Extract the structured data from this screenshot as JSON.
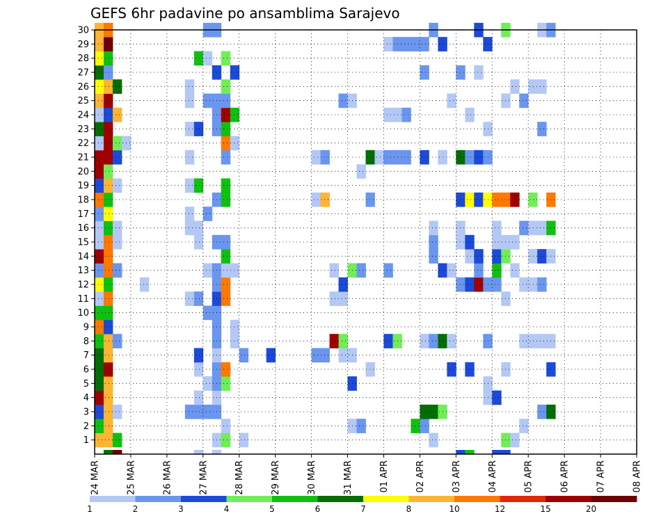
{
  "chart_data": {
    "type": "heatmap",
    "title": "GEFS 6hr padavine po ansamblima Sarajevo",
    "xlabel": "",
    "ylabel": "",
    "x_ticks": [
      "24 MAR",
      "25 MAR",
      "26 MAR",
      "27 MAR",
      "28 MAR",
      "29 MAR",
      "30 MAR",
      "31 MAR",
      "01 APR",
      "02 APR",
      "03 APR",
      "04 APR",
      "05 APR",
      "06 APR",
      "07 APR",
      "08 APR"
    ],
    "y_ticks": [
      "1",
      "2",
      "3",
      "4",
      "5",
      "6",
      "7",
      "8",
      "9",
      "10",
      "11",
      "12",
      "13",
      "14",
      "15",
      "16",
      "17",
      "18",
      "19",
      "20",
      "21",
      "22",
      "23",
      "24",
      "25",
      "26",
      "27",
      "28",
      "29",
      "30"
    ],
    "xlim": [
      "24 MAR 00Z",
      "08 APR 00Z"
    ],
    "ylim": [
      0,
      30
    ],
    "grid": true,
    "colorbar": {
      "labels": [
        "1",
        "2",
        "3",
        "4",
        "5",
        "6",
        "7",
        "8",
        "10",
        "12",
        "15",
        "20"
      ],
      "colors": [
        "#b4c8f5",
        "#6a96ef",
        "#1c4ad8",
        "#70ee58",
        "#10c010",
        "#046e04",
        "#ffff00",
        "#ffb432",
        "#ff7800",
        "#e12800",
        "#a00000",
        "#6e0000"
      ]
    },
    "cells": [
      [
        0,
        1,
        8
      ],
      [
        0,
        2,
        5
      ],
      [
        0,
        3,
        3
      ],
      [
        0,
        4,
        11
      ],
      [
        0,
        5,
        6
      ],
      [
        0,
        6,
        6
      ],
      [
        0,
        7,
        6
      ],
      [
        0,
        8,
        5
      ],
      [
        0,
        9,
        9
      ],
      [
        0,
        10,
        5
      ],
      [
        0,
        11,
        1
      ],
      [
        0,
        12,
        7
      ],
      [
        0,
        13,
        2
      ],
      [
        0,
        14,
        11
      ],
      [
        0,
        15,
        1
      ],
      [
        0,
        16,
        1
      ],
      [
        0,
        17,
        2
      ],
      [
        0,
        18,
        9
      ],
      [
        0,
        19,
        3
      ],
      [
        0,
        20,
        11
      ],
      [
        0,
        21,
        11
      ],
      [
        0,
        22,
        1
      ],
      [
        0,
        23,
        6
      ],
      [
        0,
        24,
        1
      ],
      [
        0,
        25,
        8
      ],
      [
        0,
        26,
        7
      ],
      [
        0,
        27,
        6
      ],
      [
        0,
        28,
        7
      ],
      [
        0,
        29,
        8
      ],
      [
        0,
        30,
        8
      ],
      [
        1,
        0,
        6
      ],
      [
        1,
        1,
        8
      ],
      [
        1,
        2,
        8
      ],
      [
        1,
        3,
        8
      ],
      [
        1,
        4,
        8
      ],
      [
        1,
        5,
        8
      ],
      [
        1,
        6,
        11
      ],
      [
        1,
        7,
        8
      ],
      [
        1,
        8,
        8
      ],
      [
        1,
        9,
        3
      ],
      [
        1,
        10,
        5
      ],
      [
        1,
        11,
        9
      ],
      [
        1,
        12,
        5
      ],
      [
        1,
        13,
        9
      ],
      [
        1,
        14,
        9
      ],
      [
        1,
        15,
        9
      ],
      [
        1,
        16,
        5
      ],
      [
        1,
        17,
        7
      ],
      [
        1,
        18,
        5
      ],
      [
        1,
        19,
        8
      ],
      [
        1,
        20,
        4
      ],
      [
        1,
        21,
        11
      ],
      [
        1,
        22,
        11
      ],
      [
        1,
        23,
        11
      ],
      [
        1,
        24,
        3
      ],
      [
        1,
        25,
        11
      ],
      [
        1,
        26,
        8
      ],
      [
        1,
        27,
        2
      ],
      [
        1,
        28,
        5
      ],
      [
        1,
        29,
        12
      ],
      [
        1,
        30,
        9
      ],
      [
        2,
        0,
        12
      ],
      [
        2,
        1,
        5
      ],
      [
        2,
        3,
        1
      ],
      [
        2,
        8,
        2
      ],
      [
        2,
        13,
        2
      ],
      [
        2,
        15,
        1
      ],
      [
        2,
        16,
        1
      ],
      [
        2,
        19,
        1
      ],
      [
        2,
        21,
        3
      ],
      [
        2,
        22,
        4
      ],
      [
        2,
        24,
        8
      ],
      [
        2,
        26,
        6
      ],
      [
        3,
        22,
        1
      ],
      [
        5,
        12,
        1
      ],
      [
        10,
        3,
        2
      ],
      [
        10,
        11,
        1
      ],
      [
        10,
        16,
        1
      ],
      [
        10,
        17,
        1
      ],
      [
        10,
        19,
        1
      ],
      [
        10,
        21,
        1
      ],
      [
        10,
        23,
        1
      ],
      [
        10,
        25,
        1
      ],
      [
        10,
        26,
        1
      ],
      [
        11,
        0,
        1
      ],
      [
        11,
        3,
        2
      ],
      [
        11,
        4,
        1
      ],
      [
        11,
        6,
        1
      ],
      [
        11,
        7,
        3
      ],
      [
        11,
        11,
        2
      ],
      [
        11,
        15,
        1
      ],
      [
        11,
        16,
        1
      ],
      [
        11,
        19,
        5
      ],
      [
        11,
        23,
        3
      ],
      [
        11,
        28,
        5
      ],
      [
        12,
        3,
        2
      ],
      [
        12,
        5,
        1
      ],
      [
        12,
        10,
        2
      ],
      [
        12,
        13,
        1
      ],
      [
        12,
        17,
        2
      ],
      [
        12,
        25,
        2
      ],
      [
        12,
        28,
        1
      ],
      [
        12,
        30,
        2
      ],
      [
        13,
        0,
        1
      ],
      [
        13,
        1,
        1
      ],
      [
        13,
        3,
        2
      ],
      [
        13,
        4,
        1
      ],
      [
        13,
        5,
        2
      ],
      [
        13,
        6,
        2
      ],
      [
        13,
        7,
        1
      ],
      [
        13,
        8,
        2
      ],
      [
        13,
        9,
        2
      ],
      [
        13,
        10,
        2
      ],
      [
        13,
        11,
        3
      ],
      [
        13,
        12,
        2
      ],
      [
        13,
        13,
        2
      ],
      [
        13,
        15,
        2
      ],
      [
        13,
        18,
        2
      ],
      [
        13,
        23,
        2
      ],
      [
        13,
        24,
        2
      ],
      [
        13,
        25,
        2
      ],
      [
        13,
        27,
        3
      ],
      [
        13,
        30,
        2
      ],
      [
        14,
        1,
        4
      ],
      [
        14,
        2,
        1
      ],
      [
        14,
        5,
        4
      ],
      [
        14,
        6,
        9
      ],
      [
        14,
        11,
        9
      ],
      [
        14,
        12,
        9
      ],
      [
        14,
        13,
        1
      ],
      [
        14,
        14,
        5
      ],
      [
        14,
        15,
        2
      ],
      [
        14,
        18,
        5
      ],
      [
        14,
        19,
        5
      ],
      [
        14,
        21,
        2
      ],
      [
        14,
        22,
        9
      ],
      [
        14,
        23,
        5
      ],
      [
        14,
        24,
        11
      ],
      [
        14,
        25,
        2
      ],
      [
        14,
        26,
        4
      ],
      [
        14,
        28,
        4
      ],
      [
        15,
        8,
        1
      ],
      [
        15,
        9,
        1
      ],
      [
        15,
        13,
        1
      ],
      [
        15,
        22,
        1
      ],
      [
        15,
        24,
        5
      ],
      [
        15,
        27,
        3
      ],
      [
        16,
        1,
        1
      ],
      [
        16,
        7,
        2
      ],
      [
        19,
        7,
        3
      ],
      [
        24,
        7,
        2
      ],
      [
        24,
        18,
        1
      ],
      [
        24,
        21,
        1
      ],
      [
        25,
        7,
        2
      ],
      [
        25,
        18,
        8
      ],
      [
        25,
        21,
        2
      ],
      [
        26,
        8,
        11
      ],
      [
        26,
        11,
        1
      ],
      [
        26,
        13,
        1
      ],
      [
        27,
        7,
        1
      ],
      [
        27,
        8,
        4
      ],
      [
        27,
        11,
        1
      ],
      [
        27,
        12,
        3
      ],
      [
        27,
        25,
        2
      ],
      [
        28,
        2,
        1
      ],
      [
        28,
        5,
        3
      ],
      [
        28,
        7,
        1
      ],
      [
        28,
        13,
        4
      ],
      [
        28,
        25,
        1
      ],
      [
        29,
        2,
        2
      ],
      [
        29,
        13,
        2
      ],
      [
        29,
        20,
        1
      ],
      [
        30,
        6,
        1
      ],
      [
        30,
        18,
        2
      ],
      [
        30,
        21,
        6
      ],
      [
        31,
        21,
        1
      ],
      [
        32,
        8,
        3
      ],
      [
        32,
        13,
        2
      ],
      [
        32,
        21,
        2
      ],
      [
        32,
        24,
        1
      ],
      [
        32,
        29,
        1
      ],
      [
        33,
        8,
        4
      ],
      [
        33,
        21,
        2
      ],
      [
        33,
        24,
        1
      ],
      [
        33,
        29,
        2
      ],
      [
        34,
        21,
        2
      ],
      [
        34,
        24,
        2
      ],
      [
        34,
        29,
        2
      ],
      [
        35,
        2,
        5
      ],
      [
        35,
        29,
        2
      ],
      [
        36,
        2,
        2
      ],
      [
        36,
        3,
        6
      ],
      [
        36,
        8,
        1
      ],
      [
        36,
        21,
        3
      ],
      [
        36,
        27,
        2
      ],
      [
        36,
        29,
        2
      ],
      [
        37,
        1,
        1
      ],
      [
        37,
        3,
        6
      ],
      [
        37,
        8,
        2
      ],
      [
        37,
        14,
        2
      ],
      [
        37,
        15,
        2
      ],
      [
        37,
        16,
        1
      ],
      [
        37,
        30,
        2
      ],
      [
        38,
        3,
        4
      ],
      [
        38,
        8,
        6
      ],
      [
        38,
        13,
        3
      ],
      [
        38,
        21,
        1
      ],
      [
        38,
        29,
        3
      ],
      [
        39,
        6,
        3
      ],
      [
        39,
        8,
        1
      ],
      [
        39,
        13,
        1
      ],
      [
        39,
        25,
        1
      ],
      [
        40,
        0,
        3
      ],
      [
        40,
        12,
        2
      ],
      [
        40,
        15,
        1
      ],
      [
        40,
        16,
        1
      ],
      [
        40,
        18,
        3
      ],
      [
        40,
        21,
        6
      ],
      [
        40,
        27,
        2
      ],
      [
        41,
        0,
        5
      ],
      [
        41,
        6,
        3
      ],
      [
        41,
        12,
        3
      ],
      [
        41,
        14,
        1
      ],
      [
        41,
        15,
        3
      ],
      [
        41,
        18,
        7
      ],
      [
        41,
        21,
        2
      ],
      [
        41,
        24,
        1
      ],
      [
        42,
        12,
        11
      ],
      [
        42,
        13,
        2
      ],
      [
        42,
        14,
        3
      ],
      [
        42,
        18,
        3
      ],
      [
        42,
        21,
        3
      ],
      [
        42,
        27,
        1
      ],
      [
        42,
        30,
        3
      ],
      [
        43,
        4,
        1
      ],
      [
        43,
        5,
        1
      ],
      [
        43,
        8,
        2
      ],
      [
        43,
        12,
        2
      ],
      [
        43,
        18,
        7
      ],
      [
        43,
        21,
        2
      ],
      [
        43,
        23,
        1
      ],
      [
        43,
        29,
        3
      ],
      [
        44,
        0,
        3
      ],
      [
        44,
        4,
        3
      ],
      [
        44,
        12,
        2
      ],
      [
        44,
        13,
        5
      ],
      [
        44,
        14,
        3
      ],
      [
        44,
        15,
        1
      ],
      [
        44,
        16,
        1
      ],
      [
        44,
        18,
        9
      ],
      [
        45,
        0,
        3
      ],
      [
        45,
        1,
        4
      ],
      [
        45,
        6,
        1
      ],
      [
        45,
        11,
        1
      ],
      [
        45,
        14,
        4
      ],
      [
        45,
        15,
        1
      ],
      [
        45,
        18,
        9
      ],
      [
        45,
        25,
        1
      ],
      [
        45,
        30,
        4
      ],
      [
        46,
        1,
        1
      ],
      [
        46,
        13,
        1
      ],
      [
        46,
        15,
        1
      ],
      [
        46,
        18,
        11
      ],
      [
        46,
        26,
        1
      ],
      [
        47,
        2,
        1
      ],
      [
        47,
        8,
        1
      ],
      [
        47,
        12,
        1
      ],
      [
        47,
        16,
        2
      ],
      [
        47,
        25,
        2
      ],
      [
        48,
        8,
        1
      ],
      [
        48,
        12,
        1
      ],
      [
        48,
        14,
        1
      ],
      [
        48,
        16,
        1
      ],
      [
        48,
        18,
        4
      ],
      [
        48,
        26,
        1
      ],
      [
        49,
        3,
        2
      ],
      [
        49,
        8,
        1
      ],
      [
        49,
        12,
        2
      ],
      [
        49,
        14,
        3
      ],
      [
        49,
        16,
        1
      ],
      [
        49,
        23,
        2
      ],
      [
        49,
        26,
        1
      ],
      [
        49,
        30,
        1
      ],
      [
        50,
        3,
        6
      ],
      [
        50,
        6,
        3
      ],
      [
        50,
        8,
        1
      ],
      [
        50,
        14,
        1
      ],
      [
        50,
        16,
        5
      ],
      [
        50,
        18,
        9
      ],
      [
        50,
        30,
        2
      ]
    ]
  }
}
